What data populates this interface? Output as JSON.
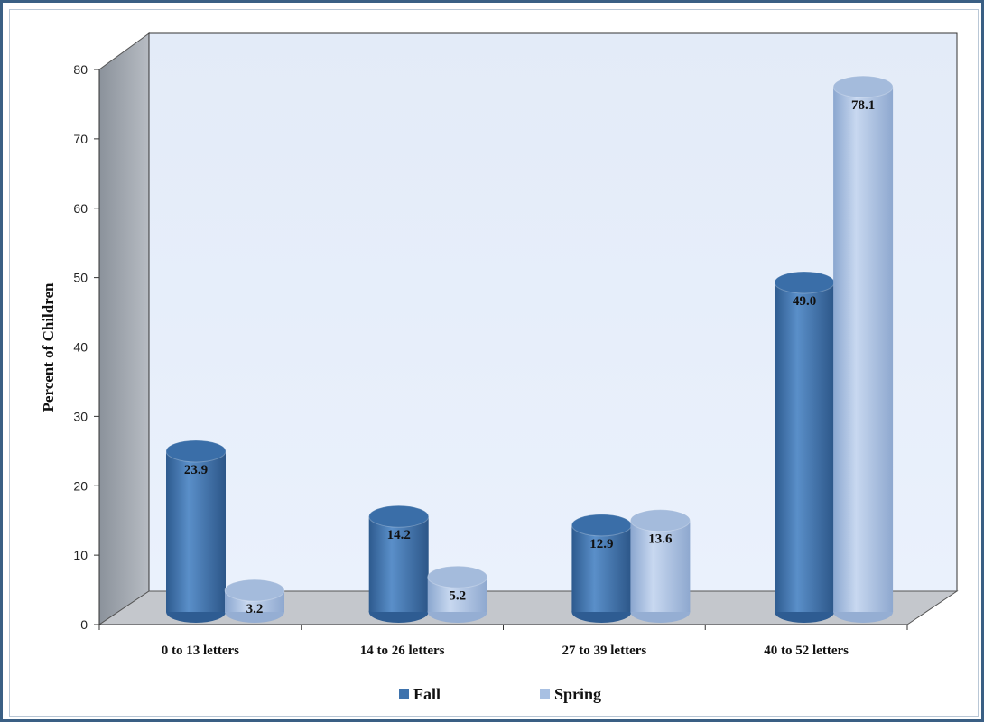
{
  "chart_data": {
    "type": "bar",
    "style": "3d-cylinder",
    "categories": [
      "0 to 13 letters",
      "14 to 26 letters",
      "27 to 39 letters",
      "40 to 52 letters"
    ],
    "series": [
      {
        "name": "Fall",
        "values": [
          23.9,
          14.2,
          12.9,
          49.0
        ],
        "labels": [
          "23.9",
          "14.2",
          "12.9",
          "49.0"
        ],
        "color": "#3f73ad"
      },
      {
        "name": "Spring",
        "values": [
          3.2,
          5.2,
          13.6,
          78.1
        ],
        "labels": [
          "3.2",
          "5.2",
          "13.6",
          "78.1"
        ],
        "color": "#a8c0e2"
      }
    ],
    "title": "",
    "xlabel": "",
    "ylabel": "Percent of Children",
    "ylim": [
      0,
      80
    ],
    "yticks": [
      "0",
      "10",
      "20",
      "30",
      "40",
      "50",
      "60",
      "70",
      "80"
    ],
    "grid": false,
    "legend": "bottom",
    "colors": {
      "back_wall": "#e6eefb",
      "side_wall": "#a7adb5",
      "floor": "#c4c7cc"
    }
  }
}
